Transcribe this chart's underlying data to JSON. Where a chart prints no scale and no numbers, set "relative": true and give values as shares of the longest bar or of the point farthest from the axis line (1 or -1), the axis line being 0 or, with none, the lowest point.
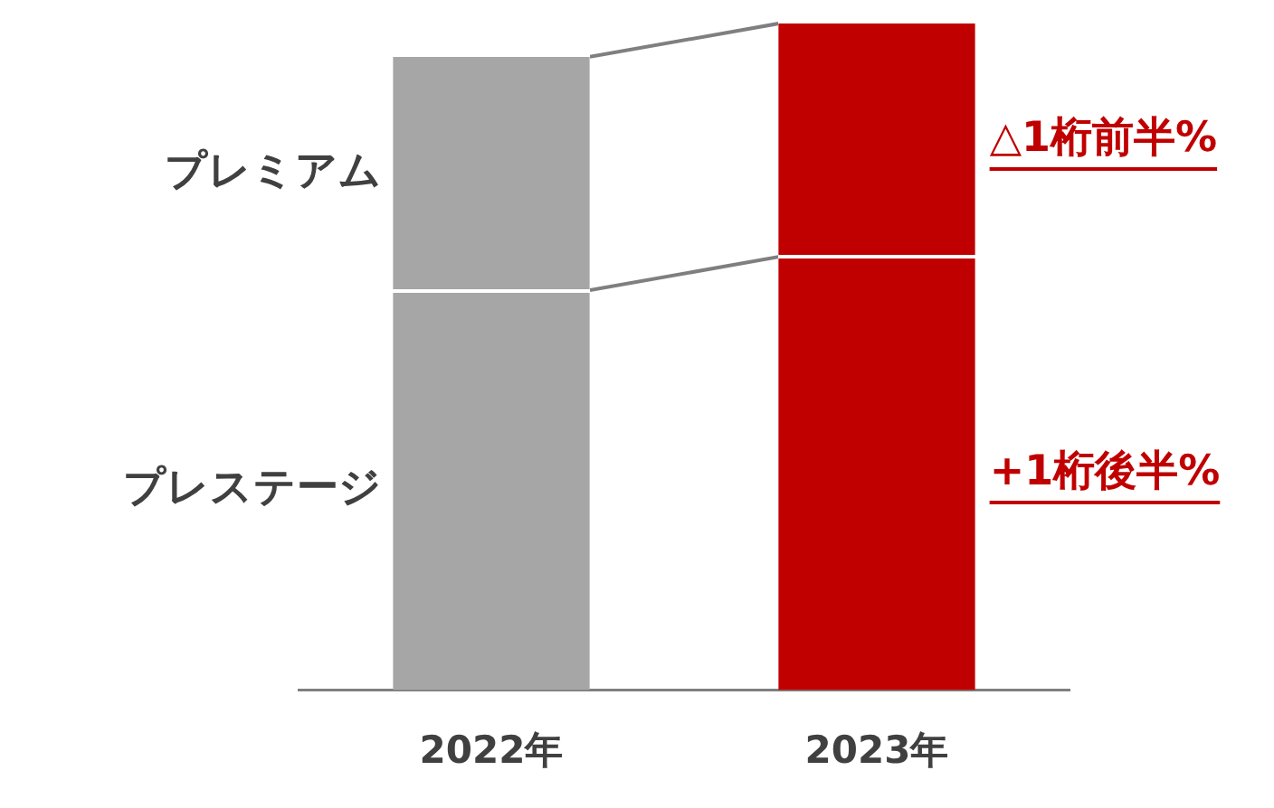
{
  "chart_data": {
    "type": "bar",
    "stacked": true,
    "relative": true,
    "tick_labels": "x",
    "categories": [
      "2022年",
      "2023年"
    ],
    "series": [
      {
        "name": "プレステージ",
        "colors": [
          "#a6a6a6",
          "#c00000"
        ],
        "values": [
          0.6,
          0.65
        ]
      },
      {
        "name": "プレミアム",
        "colors": [
          "#a6a6a6",
          "#c00000"
        ],
        "values": [
          0.35,
          0.35
        ]
      }
    ],
    "annotations": [
      "△1桁前半%",
      "+1桁後半%"
    ]
  }
}
